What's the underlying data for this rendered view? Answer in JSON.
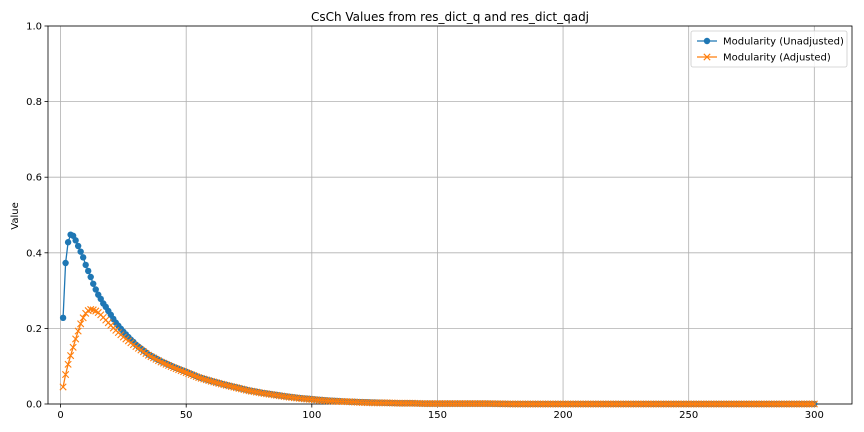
{
  "chart_data": {
    "type": "line",
    "title": "CsCh Values from res_dict_q and res_dict_qadj",
    "xlabel": "",
    "ylabel": "Value",
    "xlim": [
      -5,
      315
    ],
    "ylim": [
      0,
      1.0
    ],
    "xticks": [
      0,
      50,
      100,
      150,
      200,
      250,
      300
    ],
    "yticks": [
      0.0,
      0.2,
      0.4,
      0.6,
      0.8,
      1.0
    ],
    "xtick_labels": [
      "0",
      "50",
      "100",
      "150",
      "200",
      "250",
      "300"
    ],
    "ytick_labels": [
      "0.0",
      "0.2",
      "0.4",
      "0.6",
      "0.8",
      "1.0"
    ],
    "grid": true,
    "legend_position": "top-right",
    "x_range": [
      1,
      300
    ],
    "series": [
      {
        "name": "Modularity (Unadjusted)",
        "color": "#1f77b4",
        "marker": "circle",
        "x": [
          1,
          2,
          3,
          4,
          5,
          6,
          7,
          8,
          9,
          10,
          11,
          12,
          13,
          14,
          15,
          16,
          17,
          18,
          19,
          20,
          21,
          22,
          23,
          24,
          25,
          26,
          27,
          28,
          29,
          30,
          35,
          40,
          45,
          50,
          55,
          60,
          65,
          70,
          75,
          80,
          85,
          90,
          95,
          100,
          105,
          110,
          115,
          120,
          125,
          130,
          135,
          140,
          145,
          150,
          160,
          170,
          180,
          190,
          200,
          220,
          240,
          260,
          280,
          300
        ],
        "values": [
          0.228,
          0.373,
          0.428,
          0.448,
          0.445,
          0.433,
          0.418,
          0.403,
          0.388,
          0.368,
          0.352,
          0.336,
          0.318,
          0.303,
          0.289,
          0.278,
          0.266,
          0.257,
          0.246,
          0.236,
          0.225,
          0.215,
          0.207,
          0.199,
          0.191,
          0.184,
          0.177,
          0.17,
          0.164,
          0.157,
          0.131,
          0.113,
          0.098,
          0.085,
          0.071,
          0.061,
          0.052,
          0.044,
          0.036,
          0.03,
          0.025,
          0.02,
          0.016,
          0.013,
          0.01,
          0.008,
          0.006,
          0.005,
          0.004,
          0.003,
          0.002,
          0.002,
          0.001,
          0.001,
          0.001,
          0.001,
          0.0,
          0.0,
          0.0,
          0.0,
          0.0,
          0.0,
          0.0,
          0.0
        ]
      },
      {
        "name": "Modularity (Adjusted)",
        "color": "#ff7f0e",
        "marker": "x",
        "x": [
          1,
          2,
          3,
          4,
          5,
          6,
          7,
          8,
          9,
          10,
          11,
          12,
          13,
          14,
          15,
          16,
          17,
          18,
          19,
          20,
          21,
          22,
          23,
          24,
          25,
          26,
          27,
          28,
          29,
          30,
          35,
          40,
          45,
          50,
          55,
          60,
          65,
          70,
          75,
          80,
          85,
          90,
          95,
          100,
          105,
          110,
          115,
          120,
          125,
          130,
          135,
          140,
          145,
          150,
          160,
          170,
          180,
          190,
          200,
          220,
          240,
          260,
          280,
          300
        ],
        "values": [
          0.045,
          0.078,
          0.105,
          0.128,
          0.15,
          0.172,
          0.193,
          0.212,
          0.228,
          0.24,
          0.247,
          0.25,
          0.249,
          0.246,
          0.242,
          0.236,
          0.229,
          0.222,
          0.215,
          0.208,
          0.201,
          0.195,
          0.189,
          0.183,
          0.177,
          0.172,
          0.167,
          0.162,
          0.157,
          0.152,
          0.129,
          0.111,
          0.096,
          0.083,
          0.07,
          0.06,
          0.051,
          0.043,
          0.035,
          0.029,
          0.024,
          0.019,
          0.015,
          0.012,
          0.009,
          0.007,
          0.006,
          0.004,
          0.003,
          0.003,
          0.002,
          0.002,
          0.001,
          0.001,
          0.001,
          0.001,
          0.0,
          0.0,
          0.0,
          0.0,
          0.0,
          0.0,
          0.0,
          0.0
        ]
      }
    ]
  }
}
